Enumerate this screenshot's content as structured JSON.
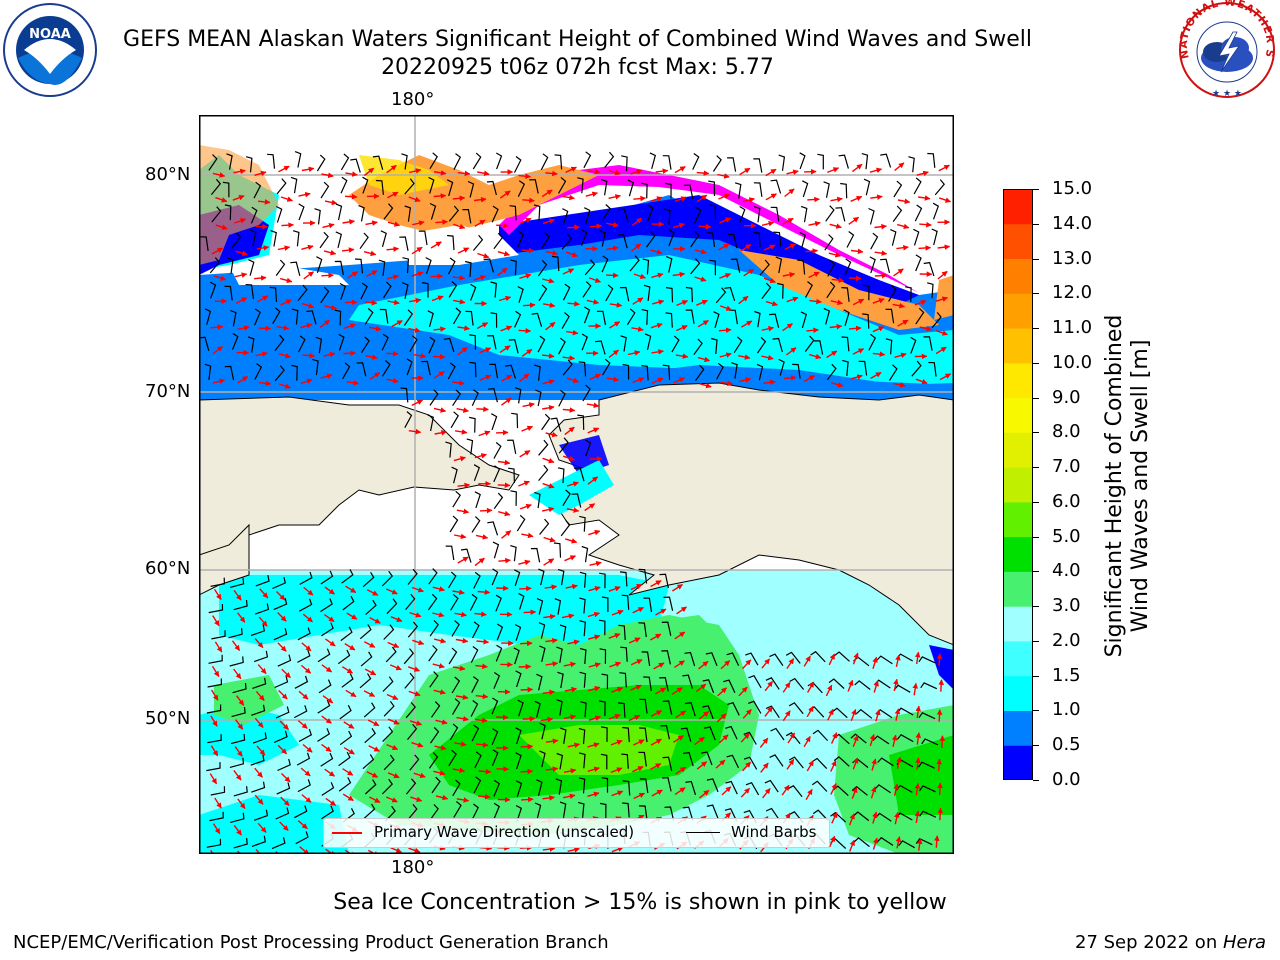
{
  "title": {
    "line1": "GEFS MEAN Alaskan Waters Significant Height of Combined Wind Waves and Swell",
    "line2": "20220925 t06z 072h fcst   Max: 5.77"
  },
  "logos": {
    "noaa_text": "NOAA",
    "nws_text": "NATIONAL WEATHER SERVICE"
  },
  "map": {
    "lon_label_top": "180°",
    "lon_label_bottom": "180°",
    "lat_labels": [
      "80°N",
      "70°N",
      "60°N",
      "50°N"
    ],
    "colors": {
      "land": "#efecdc",
      "ocean_low": "#a0ffff",
      "ocean_mid": "#00ffff",
      "ocean_blue": "#0080ff",
      "ocean_dark": "#0000ff",
      "wave_green_light": "#48f070",
      "wave_green": "#20e020",
      "wave_lime": "#60f000",
      "ice_pink": "#ff00ff",
      "ice_orange": "#ffa040",
      "ice_yellow": "#ffe000",
      "arrow": "#ff0000",
      "barb": "#000000",
      "grid": "#b0b0b0"
    }
  },
  "legend": {
    "wave_dir_label": "Primary Wave Direction (unscaled)",
    "wind_barbs_label": "Wind Barbs"
  },
  "colorbar": {
    "label": "Significant Height of Combined Wind Waves and Swell [m]",
    "label_line1": "Significant Height of Combined",
    "label_line2": "Wind Waves and Swell [m]",
    "ticks": [
      "15.0",
      "14.0",
      "13.0",
      "12.0",
      "11.0",
      "10.0",
      "9.0",
      "8.0",
      "7.0",
      "6.0",
      "5.0",
      "4.0",
      "3.0",
      "2.0",
      "1.5",
      "1.0",
      "0.5",
      "0.0"
    ],
    "bins": [
      {
        "from": 0.0,
        "to": 0.5,
        "color": "#0000ff"
      },
      {
        "from": 0.5,
        "to": 1.0,
        "color": "#0080ff"
      },
      {
        "from": 1.0,
        "to": 1.5,
        "color": "#00ffff"
      },
      {
        "from": 1.5,
        "to": 2.0,
        "color": "#40ffff"
      },
      {
        "from": 2.0,
        "to": 3.0,
        "color": "#a0ffff"
      },
      {
        "from": 3.0,
        "to": 4.0,
        "color": "#48f070"
      },
      {
        "from": 4.0,
        "to": 5.0,
        "color": "#00e000"
      },
      {
        "from": 5.0,
        "to": 6.0,
        "color": "#60f000"
      },
      {
        "from": 6.0,
        "to": 7.0,
        "color": "#c0f000"
      },
      {
        "from": 7.0,
        "to": 8.0,
        "color": "#e0f000"
      },
      {
        "from": 8.0,
        "to": 9.0,
        "color": "#f8f800"
      },
      {
        "from": 9.0,
        "to": 10.0,
        "color": "#ffe800"
      },
      {
        "from": 10.0,
        "to": 11.0,
        "color": "#ffc000"
      },
      {
        "from": 11.0,
        "to": 12.0,
        "color": "#ffa000"
      },
      {
        "from": 12.0,
        "to": 13.0,
        "color": "#ff8000"
      },
      {
        "from": 13.0,
        "to": 14.0,
        "color": "#ff5000"
      },
      {
        "from": 14.0,
        "to": 15.0,
        "color": "#ff2000"
      }
    ]
  },
  "notes": {
    "ice": "Sea Ice Concentration > 15% is shown in pink to yellow"
  },
  "footer": {
    "left": "NCEP/EMC/Verification Post Processing Product Generation Branch",
    "right_date": "27 Sep 2022 on ",
    "right_host": "Hera"
  }
}
